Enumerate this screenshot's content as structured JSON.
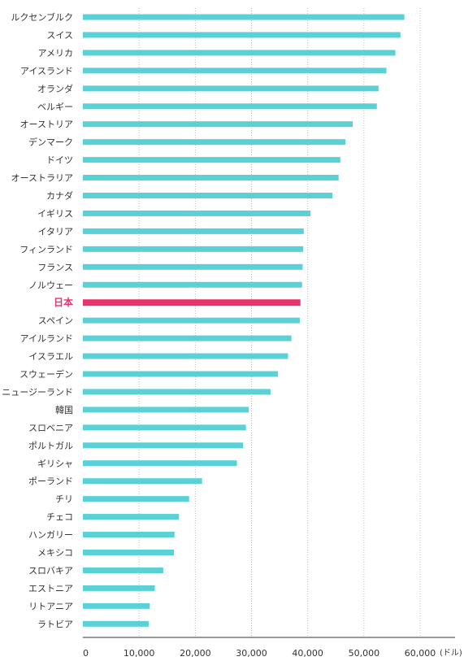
{
  "chart_data": {
    "type": "bar",
    "orientation": "horizontal",
    "categories": [
      "ルクセンブルク",
      "スイス",
      "アメリカ",
      "アイスランド",
      "オランダ",
      "ベルギー",
      "オーストリア",
      "デンマーク",
      "ドイツ",
      "オーストラリア",
      "カナダ",
      "イギリス",
      "イタリア",
      "フィンランド",
      "フランス",
      "ノルウェー",
      "日本",
      "スペイン",
      "アイルランド",
      "イスラエル",
      "スウェーデン",
      "ニュージーランド",
      "韓国",
      "スロベニア",
      "ポルトガル",
      "ギリシャ",
      "ポーランド",
      "チリ",
      "チェコ",
      "ハンガリー",
      "メキシコ",
      "スロバキア",
      "エストニア",
      "リトアニア",
      "ラトビア"
    ],
    "values": [
      57200,
      56500,
      55600,
      54000,
      52600,
      52300,
      48000,
      46700,
      45800,
      45500,
      44400,
      40500,
      39300,
      39200,
      39100,
      39000,
      38700,
      38600,
      37100,
      36500,
      34700,
      33400,
      29500,
      29000,
      28500,
      27400,
      21200,
      18900,
      17100,
      16300,
      16200,
      14300,
      12800,
      11900,
      11700
    ],
    "highlight": "日本",
    "xlim": [
      0,
      65000
    ],
    "xticks": [
      0,
      10000,
      20000,
      30000,
      40000,
      50000,
      60000
    ],
    "tick_labels": [
      "0",
      "10,000",
      "20,000",
      "30,000",
      "40,000",
      "50,000",
      "60,000"
    ],
    "unit": "(ドル)",
    "colors": {
      "bar": "#5ad1d6",
      "highlight": "#e8336d"
    },
    "grid": true
  }
}
